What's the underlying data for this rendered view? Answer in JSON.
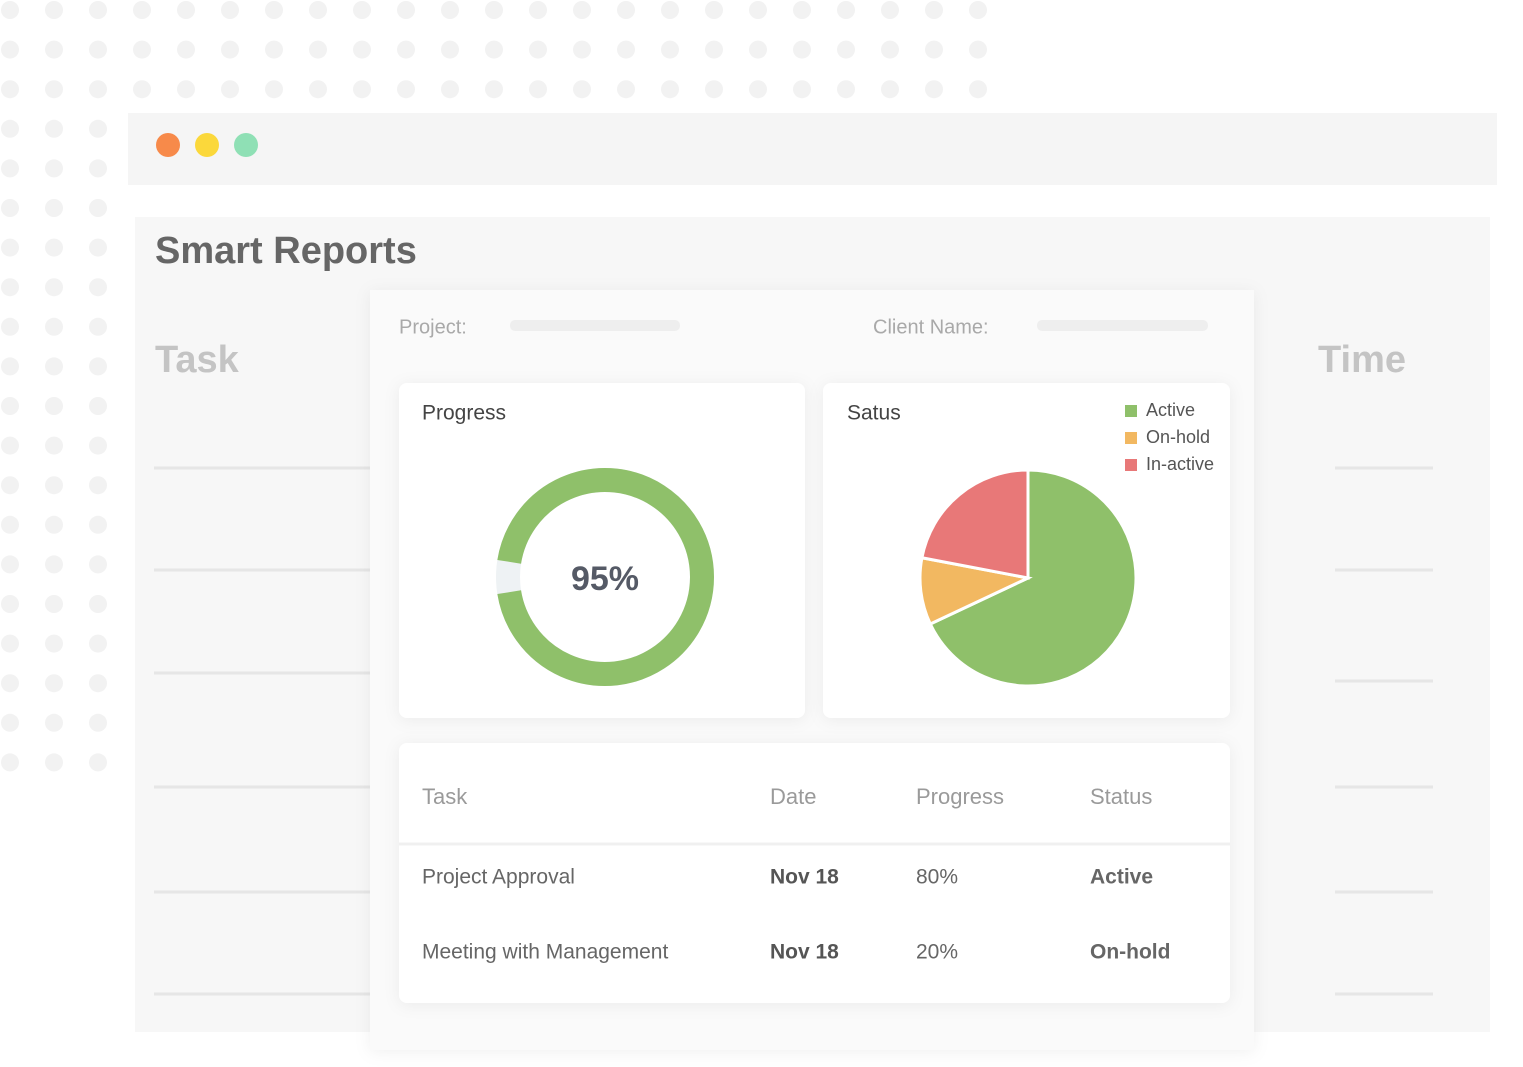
{
  "page": {
    "title": "Smart Reports",
    "background_columns": [
      "Task",
      "Time"
    ],
    "filters": [
      {
        "label": "Project:"
      },
      {
        "label": "Client Name:"
      }
    ]
  },
  "chart_data": [
    {
      "type": "donut",
      "title": "Progress",
      "values": [
        95
      ],
      "value_labels": [
        "95%"
      ],
      "ylim": [
        0,
        100
      ],
      "color": "#8fc06a",
      "track_color": "#eef2f4"
    },
    {
      "type": "pie",
      "title": "Satus",
      "categories": [
        "Active",
        "On-hold",
        "In-active"
      ],
      "values": [
        68,
        10,
        22
      ],
      "colors": [
        "#8fc06a",
        "#f2b861",
        "#e87878"
      ],
      "legend": "top-right"
    }
  ],
  "table": {
    "header": [
      "Task",
      "Date",
      "Progress",
      "Status"
    ],
    "rows": [
      [
        "Project Approval",
        "Nov 18",
        "80%",
        "Active"
      ],
      [
        "Meeting with Management",
        "Nov 18",
        "20%",
        "On-hold"
      ]
    ]
  }
}
